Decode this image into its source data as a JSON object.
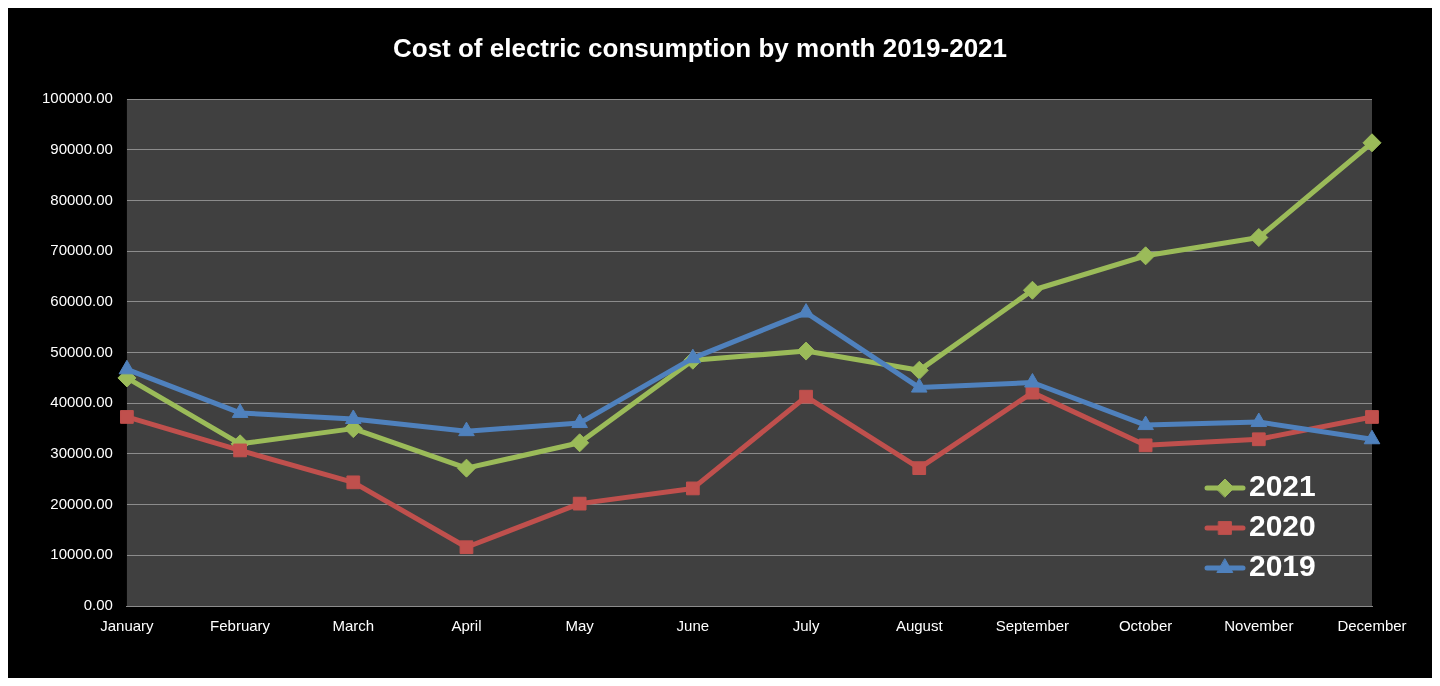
{
  "chart_data": {
    "type": "line",
    "title": "Cost of electric consumption by month 2019-2021",
    "categories": [
      "January",
      "February",
      "March",
      "April",
      "May",
      "June",
      "July",
      "August",
      "September",
      "October",
      "November",
      "December"
    ],
    "series": [
      {
        "name": "2021",
        "color": "#9bbb59",
        "marker": "diamond",
        "values": [
          45000,
          32000,
          35000,
          27200,
          32200,
          48500,
          50300,
          46500,
          62300,
          69100,
          72700,
          91400
        ]
      },
      {
        "name": "2020",
        "color": "#c0504d",
        "marker": "square",
        "values": [
          37300,
          30700,
          24400,
          11600,
          20200,
          23200,
          41300,
          27200,
          42100,
          31700,
          32900,
          37300
        ]
      },
      {
        "name": "2019",
        "color": "#4f81bd",
        "marker": "triangle",
        "values": [
          46700,
          38100,
          36900,
          34500,
          36100,
          48900,
          57900,
          43100,
          44100,
          35700,
          36300,
          32900
        ]
      }
    ],
    "ylim": [
      0,
      100000
    ],
    "yticks": [
      {
        "value": 0,
        "label": "0.00"
      },
      {
        "value": 10000,
        "label": "10000.00"
      },
      {
        "value": 20000,
        "label": "20000.00"
      },
      {
        "value": 30000,
        "label": "30000.00"
      },
      {
        "value": 40000,
        "label": "40000.00"
      },
      {
        "value": 50000,
        "label": "50000.00"
      },
      {
        "value": 60000,
        "label": "60000.00"
      },
      {
        "value": 70000,
        "label": "70000.00"
      },
      {
        "value": 80000,
        "label": "80000.00"
      },
      {
        "value": 90000,
        "label": "90000.00"
      },
      {
        "value": 100000,
        "label": "100000.00"
      }
    ],
    "grid": "y",
    "legend": "bottom right",
    "line_style": "solid"
  }
}
